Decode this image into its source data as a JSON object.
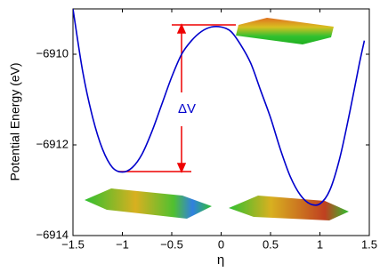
{
  "chart_data": {
    "type": "line",
    "xlabel": "η",
    "ylabel": "Potential Energy (eV)",
    "annotation": "ΔV",
    "x": [
      -1.5,
      -1.4,
      -1.3,
      -1.2,
      -1.1,
      -1.0,
      -0.9,
      -0.8,
      -0.7,
      -0.6,
      -0.5,
      -0.4,
      -0.3,
      -0.2,
      -0.1,
      0,
      0.1,
      0.2,
      0.3,
      0.4,
      0.5,
      0.6,
      0.7,
      0.8,
      0.9,
      1.0,
      1.1,
      1.2,
      1.3,
      1.4,
      1.45
    ],
    "series": [
      {
        "color": "#0000cc",
        "values": [
          -6909.0,
          -6910.4,
          -6911.4,
          -6912.1,
          -6912.5,
          -6912.6,
          -6912.5,
          -6912.2,
          -6911.7,
          -6911.1,
          -6910.5,
          -6910.0,
          -6909.7,
          -6909.5,
          -6909.4,
          -6909.4,
          -6909.5,
          -6909.8,
          -6910.2,
          -6910.8,
          -6911.4,
          -6912.1,
          -6912.7,
          -6913.1,
          -6913.3,
          -6913.3,
          -6913.0,
          -6912.3,
          -6911.3,
          -6910.2,
          -6909.7
        ]
      }
    ],
    "xlim": [
      -1.5,
      1.5
    ],
    "xticks": [
      {
        "value": -1.5,
        "label": "−1.5"
      },
      {
        "value": -1,
        "label": "−1"
      },
      {
        "value": -0.5,
        "label": "−0.5"
      },
      0,
      0.5,
      1,
      1.5
    ],
    "ylim": [
      -6914,
      -6909
    ],
    "yticks": [
      {
        "value": -6914,
        "label": "−6914"
      },
      {
        "value": -6912,
        "label": "−6912"
      },
      {
        "value": -6910,
        "label": "−6910"
      }
    ],
    "grid": false
  }
}
